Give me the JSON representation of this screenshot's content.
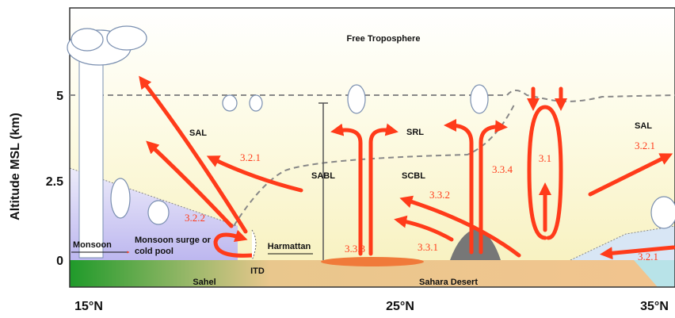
{
  "axes": {
    "y_title": "Altitude MSL (km)",
    "y_ticks": [
      "5",
      "2.5",
      "0"
    ],
    "x_ticks": [
      "15°N",
      "25°N",
      "35°N"
    ]
  },
  "regions": [
    "Free Troposphere",
    "SAL",
    "SAL",
    "SRL",
    "SABL",
    "SCBL",
    "Monsoon",
    "Monsoon surge or",
    "cold pool",
    "Harmattan",
    "ITD",
    "Sahel",
    "Sahara Desert"
  ],
  "processes": [
    "3.2.1",
    "3.2.2",
    "3.3.3",
    "3.3.1",
    "3.3.2",
    "3.3.4",
    "3.1",
    "3.2.1",
    "3.2.1"
  ]
}
